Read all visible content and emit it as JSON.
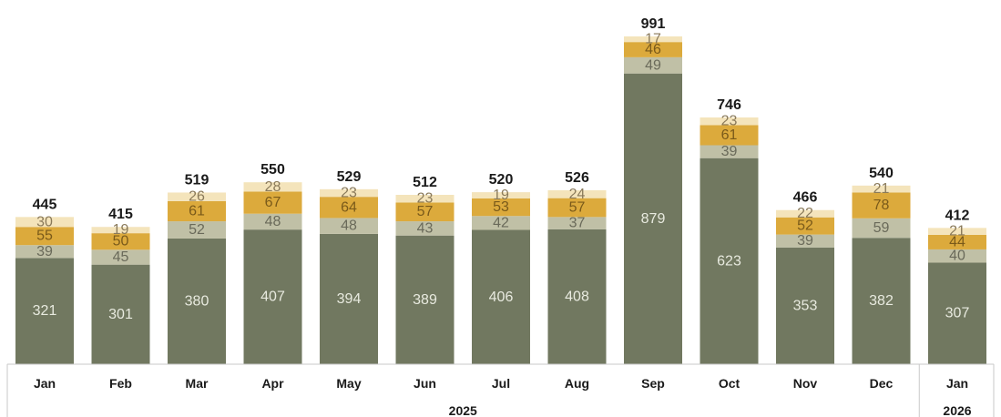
{
  "chart_data": {
    "type": "bar",
    "stacked": true,
    "categories": [
      "Jan",
      "Feb",
      "Mar",
      "Apr",
      "May",
      "Jun",
      "Jul",
      "Aug",
      "Sep",
      "Oct",
      "Nov",
      "Dec",
      "Jan"
    ],
    "years": [
      {
        "label": "2025",
        "from": 0,
        "to": 11
      },
      {
        "label": "2026",
        "from": 12,
        "to": 12
      }
    ],
    "series": [
      {
        "color": "#717860",
        "label_color": "#e8eadf",
        "values": [
          321,
          301,
          380,
          407,
          394,
          389,
          406,
          408,
          879,
          623,
          353,
          382,
          307
        ]
      },
      {
        "color": "#c0c0a6",
        "label_color": "#6a6a5a",
        "values": [
          39,
          45,
          52,
          48,
          48,
          43,
          42,
          37,
          49,
          39,
          39,
          59,
          40
        ]
      },
      {
        "color": "#dcaa3c",
        "label_color": "#7a5a1a",
        "values": [
          55,
          50,
          61,
          67,
          64,
          57,
          53,
          57,
          46,
          61,
          52,
          78,
          44
        ]
      },
      {
        "color": "#f4e4bb",
        "label_color": "#8a7a5a",
        "values": [
          30,
          19,
          26,
          28,
          23,
          23,
          19,
          24,
          17,
          23,
          22,
          21,
          21
        ]
      }
    ],
    "totals": [
      445,
      415,
      519,
      550,
      529,
      512,
      520,
      526,
      991,
      746,
      466,
      540,
      412
    ],
    "ylim": [
      0,
      991
    ],
    "grid": false,
    "legend": "none"
  }
}
